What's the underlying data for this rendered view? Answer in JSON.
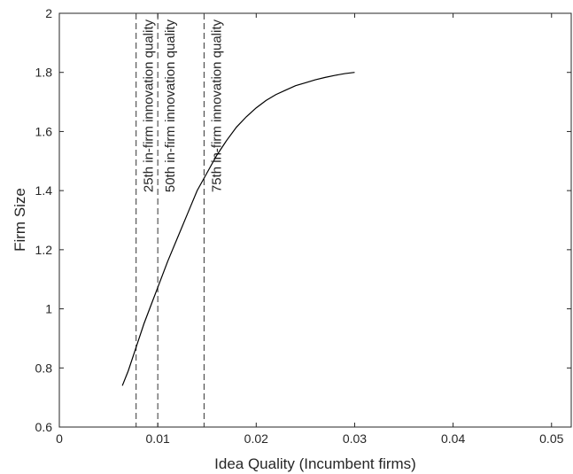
{
  "chart_data": {
    "type": "line",
    "title": "",
    "xlabel": "Idea Quality (Incumbent firms)",
    "ylabel": "Firm Size",
    "xlim": [
      0,
      0.052
    ],
    "ylim": [
      0.6,
      2
    ],
    "x_ticks": [
      0,
      0.01,
      0.02,
      0.03,
      0.04,
      0.05
    ],
    "x_tick_labels": [
      "0",
      "0.01",
      "0.02",
      "0.03",
      "0.04",
      "0.05"
    ],
    "y_ticks": [
      0.6,
      0.8,
      1,
      1.2,
      1.4,
      1.6,
      1.8,
      2
    ],
    "y_tick_labels": [
      "0.6",
      "0.8",
      "1",
      "1.2",
      "1.4",
      "1.6",
      "1.8",
      "2"
    ],
    "grid": false,
    "series": [
      {
        "color": "#000000",
        "x": [
          0.0064,
          0.007,
          0.0078,
          0.0086,
          0.0094,
          0.0102,
          0.011,
          0.012,
          0.013,
          0.014,
          0.015,
          0.016,
          0.017,
          0.018,
          0.019,
          0.02,
          0.021,
          0.022,
          0.023,
          0.024,
          0.025,
          0.026,
          0.027,
          0.028,
          0.029,
          0.03
        ],
        "y": [
          0.74,
          0.79,
          0.87,
          0.95,
          1.02,
          1.09,
          1.16,
          1.24,
          1.32,
          1.4,
          1.46,
          1.52,
          1.57,
          1.615,
          1.65,
          1.68,
          1.705,
          1.725,
          1.74,
          1.755,
          1.765,
          1.775,
          1.783,
          1.79,
          1.796,
          1.8
        ]
      }
    ],
    "vlines": [
      {
        "x": 0.0078,
        "label": "25th in-firm innovation quality"
      },
      {
        "x": 0.01,
        "label": "50th in-firm innovation quality"
      },
      {
        "x": 0.0147,
        "label": "75th in-firm innovation quality"
      }
    ]
  }
}
